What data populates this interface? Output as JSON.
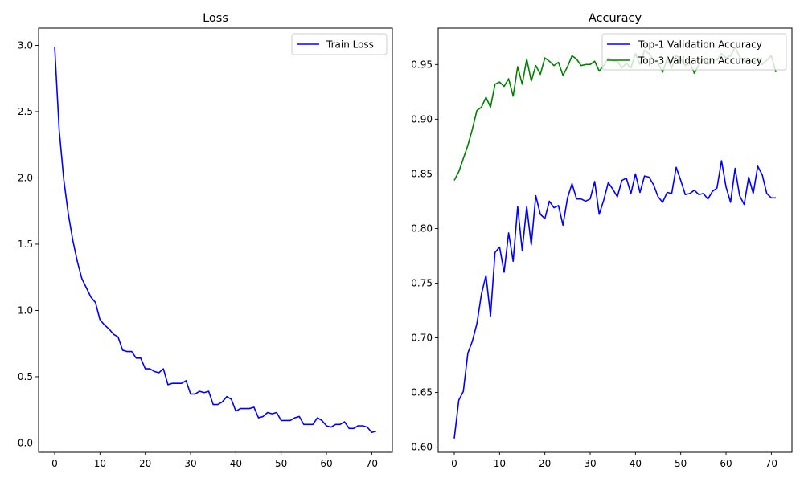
{
  "chart_data": [
    {
      "type": "line",
      "title": "Loss",
      "xlabel": "",
      "ylabel": "",
      "xlim": [
        -3.55,
        74.55
      ],
      "ylim": [
        -0.07,
        3.13
      ],
      "xticks": [
        0,
        10,
        20,
        30,
        40,
        50,
        60,
        70
      ],
      "yticks": [
        0.0,
        0.5,
        1.0,
        1.5,
        2.0,
        2.5,
        3.0
      ],
      "ytick_labels": [
        "0.0",
        "0.5",
        "1.0",
        "1.5",
        "2.0",
        "2.5",
        "3.0"
      ],
      "legend_position": "top-right",
      "grid": false,
      "series": [
        {
          "name": "Train Loss",
          "color": "#0000ff",
          "x": [
            0,
            1,
            2,
            3,
            4,
            5,
            6,
            7,
            8,
            9,
            10,
            11,
            12,
            13,
            14,
            15,
            16,
            17,
            18,
            19,
            20,
            21,
            22,
            23,
            24,
            25,
            26,
            27,
            28,
            29,
            30,
            31,
            32,
            33,
            34,
            35,
            36,
            37,
            38,
            39,
            40,
            41,
            42,
            43,
            44,
            45,
            46,
            47,
            48,
            49,
            50,
            51,
            52,
            53,
            54,
            55,
            56,
            57,
            58,
            59,
            60,
            61,
            62,
            63,
            64,
            65,
            66,
            67,
            68,
            69,
            70,
            71
          ],
          "values": [
            2.99,
            2.36,
            1.99,
            1.73,
            1.53,
            1.37,
            1.24,
            1.17,
            1.1,
            1.06,
            0.93,
            0.89,
            0.86,
            0.82,
            0.8,
            0.7,
            0.69,
            0.69,
            0.64,
            0.64,
            0.56,
            0.56,
            0.54,
            0.53,
            0.56,
            0.44,
            0.45,
            0.45,
            0.45,
            0.47,
            0.37,
            0.37,
            0.39,
            0.38,
            0.39,
            0.29,
            0.29,
            0.31,
            0.35,
            0.33,
            0.24,
            0.26,
            0.26,
            0.26,
            0.27,
            0.19,
            0.2,
            0.23,
            0.22,
            0.23,
            0.17,
            0.17,
            0.17,
            0.19,
            0.2,
            0.14,
            0.14,
            0.14,
            0.19,
            0.17,
            0.13,
            0.12,
            0.14,
            0.14,
            0.16,
            0.11,
            0.11,
            0.13,
            0.13,
            0.12,
            0.08,
            0.09
          ]
        }
      ]
    },
    {
      "type": "line",
      "title": "Accuracy",
      "xlabel": "",
      "ylabel": "",
      "xlim": [
        -3.55,
        74.55
      ],
      "ylim": [
        0.5953,
        0.9833
      ],
      "xticks": [
        0,
        10,
        20,
        30,
        40,
        50,
        60,
        70
      ],
      "yticks": [
        0.6,
        0.65,
        0.7,
        0.75,
        0.8,
        0.85,
        0.9,
        0.95
      ],
      "ytick_labels": [
        "0.60",
        "0.65",
        "0.70",
        "0.75",
        "0.80",
        "0.85",
        "0.90",
        "0.95"
      ],
      "legend_position": "top-right",
      "grid": false,
      "series": [
        {
          "name": "Top-1 Validation Accuracy",
          "color": "#0000ff",
          "x": [
            0,
            1,
            2,
            3,
            4,
            5,
            6,
            7,
            8,
            9,
            10,
            11,
            12,
            13,
            14,
            15,
            16,
            17,
            18,
            19,
            20,
            21,
            22,
            23,
            24,
            25,
            26,
            27,
            28,
            29,
            30,
            31,
            32,
            33,
            34,
            35,
            36,
            37,
            38,
            39,
            40,
            41,
            42,
            43,
            44,
            45,
            46,
            47,
            48,
            49,
            50,
            51,
            52,
            53,
            54,
            55,
            56,
            57,
            58,
            59,
            60,
            61,
            62,
            63,
            64,
            65,
            66,
            67,
            68,
            69,
            70,
            71
          ],
          "values": [
            0.608,
            0.643,
            0.651,
            0.686,
            0.697,
            0.713,
            0.74,
            0.757,
            0.72,
            0.778,
            0.783,
            0.76,
            0.796,
            0.77,
            0.82,
            0.78,
            0.82,
            0.785,
            0.83,
            0.813,
            0.809,
            0.825,
            0.819,
            0.821,
            0.803,
            0.828,
            0.841,
            0.827,
            0.827,
            0.825,
            0.827,
            0.843,
            0.813,
            0.826,
            0.842,
            0.836,
            0.829,
            0.844,
            0.846,
            0.832,
            0.85,
            0.833,
            0.848,
            0.847,
            0.84,
            0.829,
            0.824,
            0.833,
            0.832,
            0.856,
            0.844,
            0.831,
            0.832,
            0.835,
            0.831,
            0.832,
            0.827,
            0.834,
            0.837,
            0.862,
            0.838,
            0.824,
            0.855,
            0.83,
            0.822,
            0.847,
            0.832,
            0.857,
            0.849,
            0.832,
            0.828,
            0.828
          ]
        },
        {
          "name": "Top-3 Validation Accuracy",
          "color": "#008000",
          "x": [
            0,
            1,
            2,
            3,
            4,
            5,
            6,
            7,
            8,
            9,
            10,
            11,
            12,
            13,
            14,
            15,
            16,
            17,
            18,
            19,
            20,
            21,
            22,
            23,
            24,
            25,
            26,
            27,
            28,
            29,
            30,
            31,
            32,
            33,
            34,
            35,
            36,
            37,
            38,
            39,
            40,
            41,
            42,
            43,
            44,
            45,
            46,
            47,
            48,
            49,
            50,
            51,
            52,
            53,
            54,
            55,
            56,
            57,
            58,
            59,
            60,
            61,
            62,
            63,
            64,
            65,
            66,
            67,
            68,
            69,
            70,
            71
          ],
          "values": [
            0.844,
            0.852,
            0.864,
            0.876,
            0.891,
            0.908,
            0.911,
            0.92,
            0.911,
            0.932,
            0.934,
            0.93,
            0.937,
            0.921,
            0.948,
            0.932,
            0.955,
            0.935,
            0.949,
            0.941,
            0.956,
            0.953,
            0.949,
            0.952,
            0.94,
            0.948,
            0.958,
            0.955,
            0.949,
            0.95,
            0.95,
            0.953,
            0.944,
            0.949,
            0.956,
            0.953,
            0.953,
            0.947,
            0.951,
            0.947,
            0.96,
            0.95,
            0.963,
            0.96,
            0.954,
            0.951,
            0.943,
            0.955,
            0.947,
            0.958,
            0.955,
            0.949,
            0.952,
            0.942,
            0.95,
            0.955,
            0.95,
            0.955,
            0.954,
            0.96,
            0.956,
            0.958,
            0.966,
            0.957,
            0.953,
            0.955,
            0.951,
            0.956,
            0.95,
            0.954,
            0.958,
            0.943
          ]
        }
      ]
    }
  ]
}
